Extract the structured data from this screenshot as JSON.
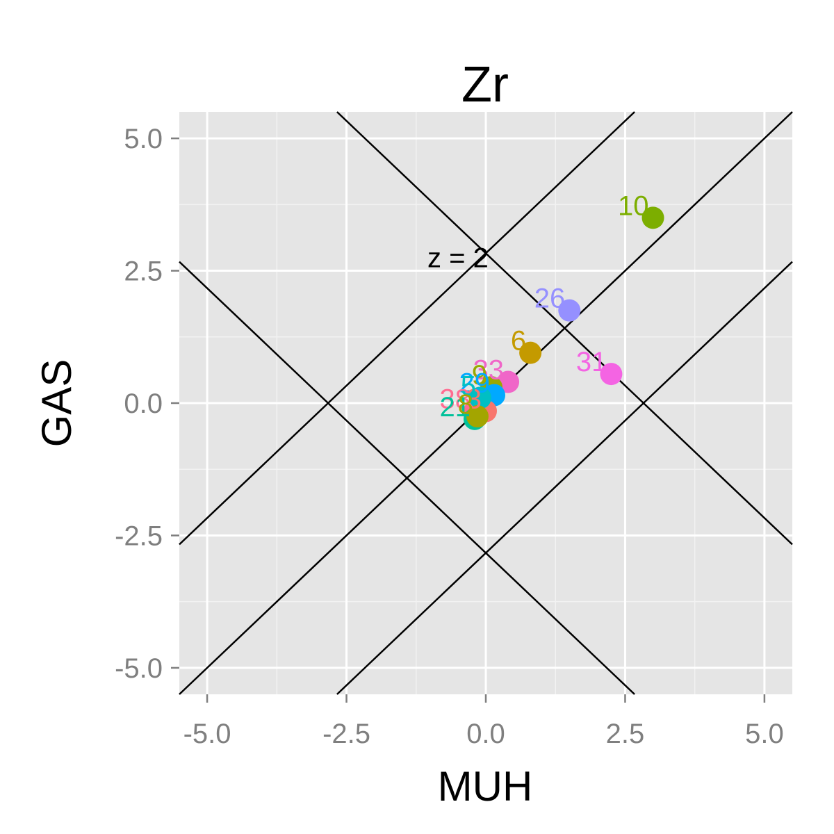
{
  "chart_data": {
    "type": "scatter",
    "title": "Zr",
    "xlabel": "MUH",
    "ylabel": "GAS",
    "xlim": [
      -5.5,
      5.5
    ],
    "ylim": [
      -5.5,
      5.5
    ],
    "x_ticks": [
      {
        "value": -5.0,
        "label": "-5.0"
      },
      {
        "value": -2.5,
        "label": "-2.5"
      },
      {
        "value": 0.0,
        "label": "0.0"
      },
      {
        "value": 2.5,
        "label": "2.5"
      },
      {
        "value": 5.0,
        "label": "5.0"
      }
    ],
    "y_ticks": [
      {
        "value": 5.0,
        "label": "5.0"
      },
      {
        "value": 2.5,
        "label": "2.5"
      },
      {
        "value": 0.0,
        "label": "0.0"
      },
      {
        "value": -2.5,
        "label": "-2.5"
      },
      {
        "value": -5.0,
        "label": "-5.0"
      }
    ],
    "grid": true,
    "background": "#e5e5e5",
    "reference_lines": [
      {
        "slope": 1,
        "intercept": 2.83
      },
      {
        "slope": 1,
        "intercept": 0
      },
      {
        "slope": 1,
        "intercept": -2.83
      },
      {
        "slope": -1,
        "intercept": 2.83
      },
      {
        "slope": -1,
        "intercept": -2.83
      }
    ],
    "annotations": [
      {
        "text": "z = 2",
        "x": -0.5,
        "y": 2.75
      }
    ],
    "points": [
      {
        "label": "10",
        "x": 3.0,
        "y": 3.5,
        "color": "#7cae00"
      },
      {
        "label": "26",
        "x": 1.5,
        "y": 1.75,
        "color": "#9590ff"
      },
      {
        "label": "6",
        "x": 0.8,
        "y": 0.95,
        "color": "#c49a00"
      },
      {
        "label": "31",
        "x": 2.25,
        "y": 0.55,
        "color": "#f464e3"
      },
      {
        "label": "33",
        "x": 0.4,
        "y": 0.4,
        "color": "#f066c8"
      },
      {
        "label": "9",
        "x": 0.1,
        "y": 0.3,
        "color": "#99a800"
      },
      {
        "label": "29",
        "x": 0.15,
        "y": 0.15,
        "color": "#00a9ff"
      },
      {
        "label": "3",
        "x": 0.0,
        "y": -0.15,
        "color": "#f8766d"
      },
      {
        "label": "38",
        "x": -0.2,
        "y": -0.15,
        "color": "#ff6c91"
      },
      {
        "label": "5",
        "x": -0.1,
        "y": 0.1,
        "color": "#00bfc4"
      },
      {
        "label": "21",
        "x": -0.2,
        "y": -0.3,
        "color": "#00c19a"
      },
      {
        "label": "8",
        "x": -0.15,
        "y": -0.25,
        "color": "#a3a500"
      }
    ]
  }
}
